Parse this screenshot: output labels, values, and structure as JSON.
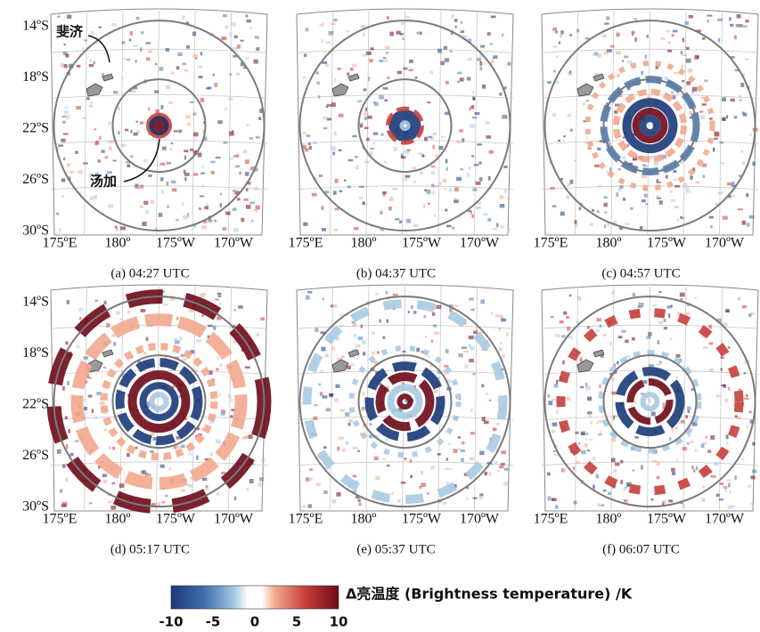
{
  "panels": [
    {
      "caption": "(a) 04:27 UTC",
      "annotations": [
        "斐济",
        "汤加"
      ],
      "y_labels": [
        "14ºS",
        "18ºS",
        "22ºS",
        "26ºS",
        "30ºS"
      ],
      "x_labels": [
        "175ºE",
        "180º",
        "175ºW",
        "170ºW"
      ]
    },
    {
      "caption": "(b) 04:37 UTC",
      "x_labels": [
        "175ºE",
        "180º",
        "175ºW",
        "170ºW"
      ]
    },
    {
      "caption": "(c) 04:57 UTC",
      "x_labels": [
        "175ºE",
        "180º",
        "175ºW",
        "170ºW"
      ]
    },
    {
      "caption": "(d) 05:17 UTC",
      "y_labels": [
        "14ºS",
        "18ºS",
        "22ºS",
        "26ºS",
        "30ºS"
      ],
      "x_labels": [
        "175ºE",
        "180º",
        "175ºW",
        "170ºW"
      ]
    },
    {
      "caption": "(e) 05:37 UTC",
      "x_labels": [
        "175ºE",
        "180º",
        "175ºW",
        "170ºW"
      ]
    },
    {
      "caption": "(f) 06:07 UTC",
      "x_labels": [
        "175ºE",
        "180º",
        "175ºW",
        "170ºW"
      ]
    }
  ],
  "colorbar": {
    "ticks": [
      -10,
      -5,
      0,
      5,
      10
    ],
    "label": "Δ亮温度 (Brightness temperature) /K"
  }
}
